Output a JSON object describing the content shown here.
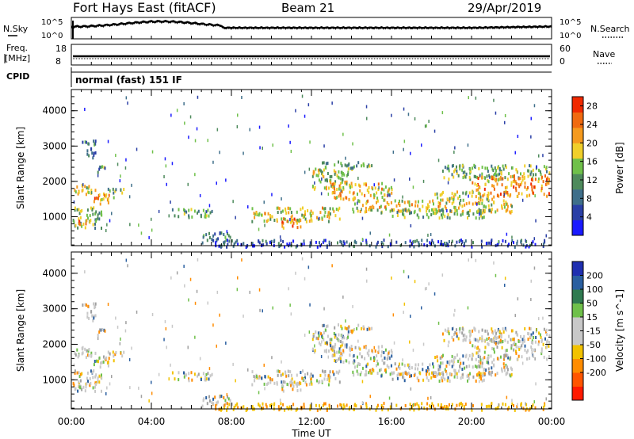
{
  "header": {
    "station": "Fort Hays East (fitACF)",
    "beam": "Beam 21",
    "date": "29/Apr/2019"
  },
  "panels": {
    "nsky_label": "N.Sky",
    "nsearch_label": "N.Search",
    "noise_ticks": [
      "10^5",
      "10^0"
    ],
    "freq_label_1": "Freq.",
    "freq_label_2": "[MHz]",
    "freq_ticks": [
      "18",
      "8"
    ],
    "nave_label": "Nave",
    "nave_ticks": [
      "60",
      "0"
    ],
    "cpid_label": "CPID",
    "cpid_text": "normal (fast) 151 IF"
  },
  "colors": {
    "power_scale": [
      "#1a1aff",
      "#2a3fa6",
      "#3f6f8a",
      "#4e8a5c",
      "#6fc04a",
      "#f0cf2a",
      "#f59a1e",
      "#f06a10",
      "#f02a00"
    ],
    "velocity_scale": [
      "#ff1a00",
      "#ff5500",
      "#ff8c00",
      "#f2c200",
      "#c8c8c8",
      "#c8c8c8",
      "#6fc04a",
      "#2f7a50",
      "#2a5fa0",
      "#1f2fb0"
    ]
  },
  "chart_data": [
    {
      "type": "heatmap",
      "name": "power",
      "ylabel": "Slant Range [km]",
      "y_ticks": [
        1000,
        2000,
        3000,
        4000
      ],
      "ylim": [
        180,
        4600
      ],
      "x_ticks": [
        "00:00",
        "04:00",
        "08:00",
        "12:00",
        "16:00",
        "20:00",
        "00:00"
      ],
      "xlim_hours": [
        0,
        24
      ],
      "colorbar_label": "Power [dB]",
      "colorbar_ticks": [
        4,
        8,
        12,
        16,
        20,
        24,
        28
      ],
      "colorbar_range": [
        0,
        30
      ]
    },
    {
      "type": "heatmap",
      "name": "velocity",
      "ylabel": "Slant Range [km]",
      "y_ticks": [
        1000,
        2000,
        3000,
        4000
      ],
      "ylim": [
        180,
        4600
      ],
      "x_ticks": [
        "00:00",
        "04:00",
        "08:00",
        "12:00",
        "16:00",
        "20:00",
        "00:00"
      ],
      "xlim_hours": [
        0,
        24
      ],
      "xlabel": "Time UT",
      "colorbar_label": "Velocity [m s^-1]",
      "colorbar_ticks": [
        "200",
        "100",
        "50",
        "15",
        "-15",
        "-50",
        "-100",
        "-200"
      ]
    }
  ],
  "scatter_regions": [
    {
      "t0": 0.0,
      "t1": 1.2,
      "r0": 1650,
      "r1": 1950,
      "val": 18
    },
    {
      "t0": 1.0,
      "t1": 2.2,
      "r0": 1400,
      "r1": 1700,
      "val": 22
    },
    {
      "t0": 0.0,
      "t1": 1.5,
      "r0": 700,
      "r1": 1300,
      "val": 14
    },
    {
      "t0": 0.3,
      "t1": 0.9,
      "r0": 800,
      "r1": 1000,
      "val": 24
    },
    {
      "t0": 0.5,
      "t1": 1.2,
      "r0": 2700,
      "r1": 3200,
      "val": 10
    },
    {
      "t0": 1.2,
      "t1": 1.8,
      "r0": 2300,
      "r1": 2500,
      "val": 12
    },
    {
      "t0": 1.8,
      "t1": 2.6,
      "r0": 1700,
      "r1": 1900,
      "val": 14
    },
    {
      "t0": 5.0,
      "t1": 7.0,
      "r0": 1000,
      "r1": 1250,
      "val": 12
    },
    {
      "t0": 6.5,
      "t1": 8.0,
      "r0": 300,
      "r1": 600,
      "val": 10
    },
    {
      "t0": 9.0,
      "t1": 13.5,
      "r0": 900,
      "r1": 1300,
      "val": 18
    },
    {
      "t0": 10.5,
      "t1": 11.5,
      "r0": 700,
      "r1": 1000,
      "val": 24
    },
    {
      "t0": 12.0,
      "t1": 14.0,
      "r0": 1800,
      "r1": 2400,
      "val": 16
    },
    {
      "t0": 13.0,
      "t1": 16.0,
      "r0": 1500,
      "r1": 2000,
      "val": 20
    },
    {
      "t0": 14.0,
      "t1": 22.0,
      "r0": 1150,
      "r1": 1500,
      "val": 18
    },
    {
      "t0": 16.0,
      "t1": 21.0,
      "r0": 1000,
      "r1": 1250,
      "val": 14
    },
    {
      "t0": 18.5,
      "t1": 24.0,
      "r0": 2100,
      "r1": 2500,
      "val": 14
    },
    {
      "t0": 20.0,
      "t1": 24.0,
      "r0": 1600,
      "r1": 2200,
      "val": 22
    },
    {
      "t0": 7.0,
      "t1": 24.0,
      "r0": 180,
      "r1": 380,
      "val": 6
    },
    {
      "t0": 12.5,
      "t1": 15.0,
      "r0": 2400,
      "r1": 2600,
      "val": 12
    },
    {
      "t0": 18.0,
      "t1": 21.0,
      "r0": 1500,
      "r1": 1750,
      "val": 16
    }
  ]
}
